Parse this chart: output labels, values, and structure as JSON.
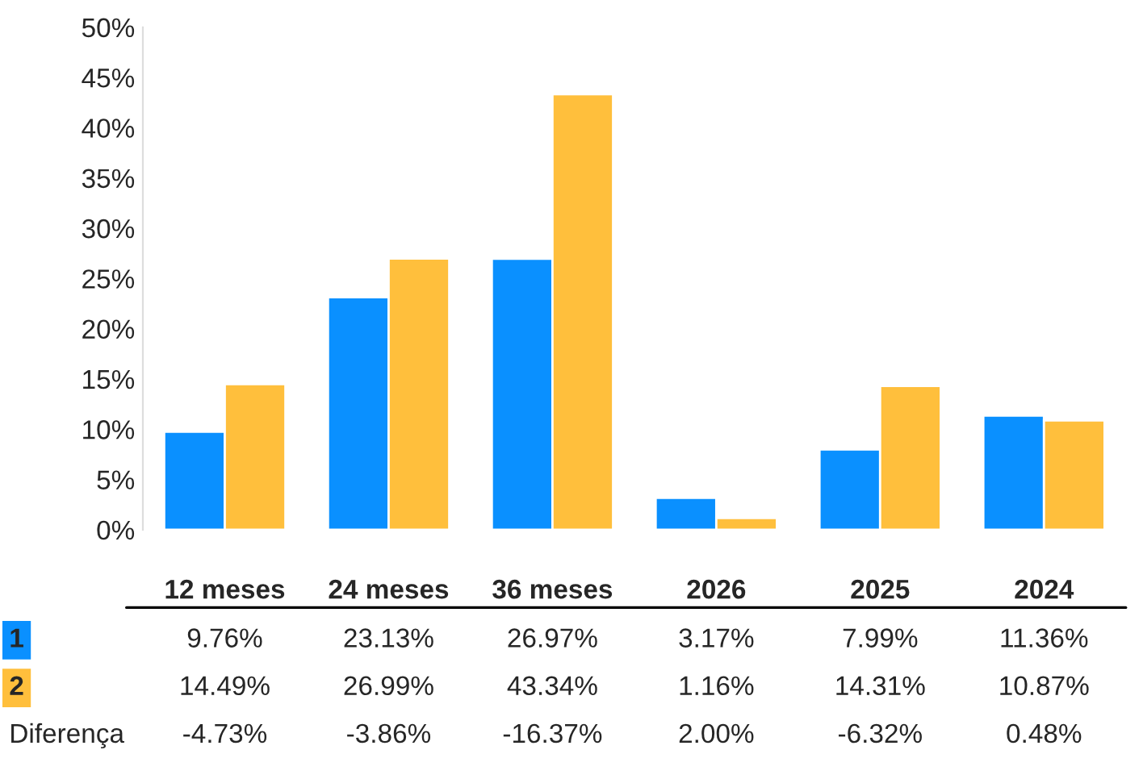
{
  "chart_data": {
    "type": "bar",
    "categories": [
      "12 meses",
      "24 meses",
      "36 meses",
      "2026",
      "2025",
      "2024"
    ],
    "series": [
      {
        "name": "1",
        "color": "#0a90ff",
        "values": [
          9.76,
          23.13,
          26.97,
          3.17,
          7.99,
          11.36
        ]
      },
      {
        "name": "2",
        "color": "#ffbf3c",
        "values": [
          14.49,
          26.99,
          43.34,
          1.16,
          14.31,
          10.87
        ]
      }
    ],
    "ylim": [
      0,
      50
    ],
    "yticks": [
      {
        "value": 0,
        "label": "0%"
      },
      {
        "value": 5,
        "label": "5%"
      },
      {
        "value": 10,
        "label": "10%"
      },
      {
        "value": 15,
        "label": "15%"
      },
      {
        "value": 20,
        "label": "20%"
      },
      {
        "value": 25,
        "label": "25%"
      },
      {
        "value": 30,
        "label": "30%"
      },
      {
        "value": 35,
        "label": "35%"
      },
      {
        "value": 40,
        "label": "40%"
      },
      {
        "value": 45,
        "label": "45%"
      },
      {
        "value": 50,
        "label": "50%"
      }
    ],
    "value_labels": [
      [
        "9.76%",
        "23.13%",
        "26.97%",
        "3.17%",
        "7.99%",
        "11.36%"
      ],
      [
        "14.49%",
        "26.99%",
        "43.34%",
        "1.16%",
        "14.31%",
        "10.87%"
      ]
    ],
    "annotations": [
      "Diferença",
      "-4.73%",
      "-3.86%",
      "-16.37%",
      "2.00%",
      "-6.32%",
      "0.48%"
    ],
    "grid": false,
    "legend": false
  }
}
